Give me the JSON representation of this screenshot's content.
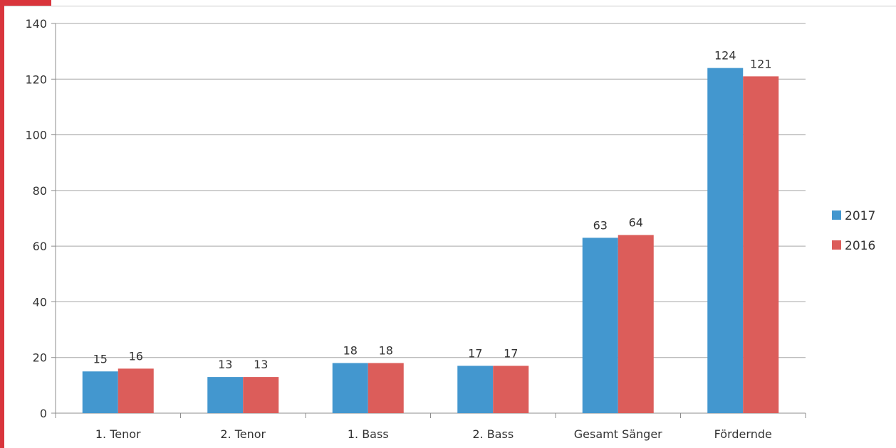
{
  "chart_data": {
    "type": "bar",
    "title": "",
    "xlabel": "",
    "ylabel": "",
    "categories": [
      "1. Tenor",
      "2. Tenor",
      "1. Bass",
      "2. Bass",
      "Gesamt Sänger",
      "Fördernde"
    ],
    "series": [
      {
        "name": "2017",
        "color": "#4397cf",
        "values": [
          15,
          13,
          18,
          17,
          63,
          124
        ]
      },
      {
        "name": "2016",
        "color": "#dc5d5a",
        "values": [
          16,
          13,
          18,
          17,
          64,
          121
        ]
      }
    ],
    "ylim": [
      0,
      140
    ],
    "yticks": [
      0,
      20,
      40,
      60,
      80,
      100,
      120,
      140
    ],
    "grid": true,
    "legend": "right",
    "data_labels": true
  },
  "colors": {
    "accent": "#d9353c",
    "gridline": "#a6a6a6"
  }
}
